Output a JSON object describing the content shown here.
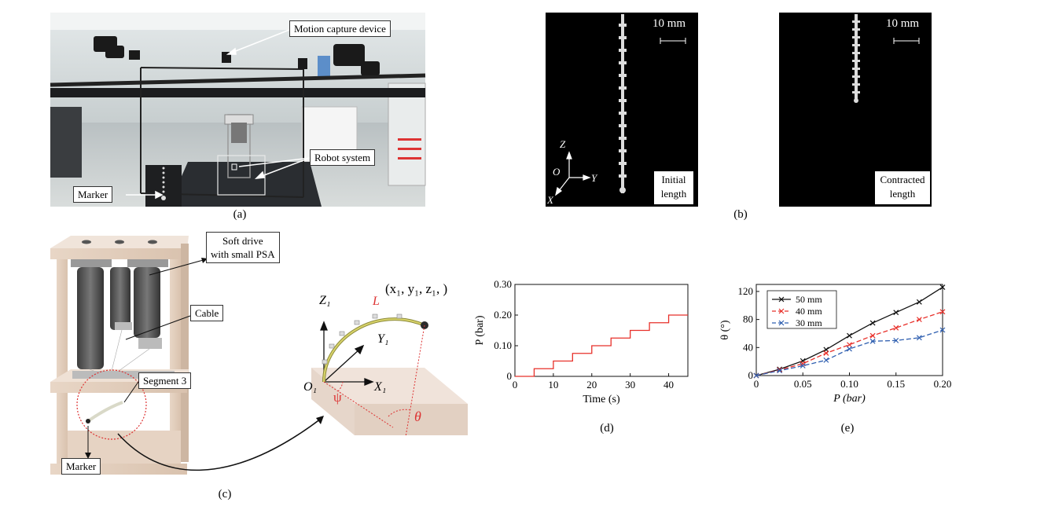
{
  "panel_a": {
    "labels": {
      "motion": "Motion capture device",
      "robot": "Robot system",
      "marker": "Marker"
    },
    "caption": "(a)"
  },
  "panel_b": {
    "scale_left": "10 mm",
    "scale_right": "10 mm",
    "axis_z": "Z",
    "axis_o": "O",
    "axis_y": "Y",
    "axis_x": "X",
    "initial_l1": "Initial",
    "initial_l2": "length",
    "contracted_l1": "Contracted",
    "contracted_l2": "length",
    "caption": "(b)"
  },
  "panel_c": {
    "soft_drive_l1": "Soft drive",
    "soft_drive_l2": "with small PSA",
    "cable": "Cable",
    "segment": "Segment 3",
    "marker": "Marker",
    "caption": "(c)",
    "coords": "(x₁, y₁, z₁, )",
    "z_axis": "Z₁",
    "y_axis": "Y₁",
    "x_axis": "X₁",
    "origin": "O₁",
    "length": "L",
    "psi": "ψ",
    "theta": "θ"
  },
  "chart_data": [
    {
      "type": "line",
      "xlabel": "Time (s)",
      "ylabel": "P (bar)",
      "xlim": [
        0,
        45
      ],
      "ylim": [
        0,
        0.3
      ],
      "xticks": [
        "0",
        "10",
        "20",
        "30",
        "40"
      ],
      "yticks": [
        "0",
        "0.10",
        "0.20",
        "0.30"
      ],
      "series": [
        {
          "color": "#e8302a",
          "x": [
            0,
            5,
            5,
            10,
            10,
            15,
            15,
            20,
            20,
            25,
            25,
            30,
            30,
            35,
            35,
            40,
            40,
            45
          ],
          "y": [
            0,
            0,
            0.025,
            0.025,
            0.05,
            0.05,
            0.075,
            0.075,
            0.1,
            0.1,
            0.125,
            0.125,
            0.15,
            0.15,
            0.175,
            0.175,
            0.2,
            0.2
          ]
        }
      ],
      "caption": "(d)"
    },
    {
      "type": "line",
      "xlabel": "P (bar)",
      "ylabel": "θ (°)",
      "xlim": [
        0,
        0.2
      ],
      "ylim": [
        0,
        130
      ],
      "xticks": [
        "0",
        "0.05",
        "0.10",
        "0.15",
        "0.20"
      ],
      "yticks": [
        "0",
        "40",
        "80",
        "120"
      ],
      "legend_position": "top-left",
      "x": [
        0,
        0.025,
        0.05,
        0.075,
        0.1,
        0.125,
        0.15,
        0.175,
        0.2
      ],
      "series": [
        {
          "name": "50 mm",
          "color": "#111111",
          "dash": "solid",
          "values": [
            0,
            9,
            21,
            37,
            57,
            75,
            90,
            105,
            126
          ]
        },
        {
          "name": "40 mm",
          "color": "#e8302a",
          "dash": "dashed",
          "values": [
            0,
            8,
            17,
            32,
            44,
            57,
            68,
            80,
            91
          ]
        },
        {
          "name": "30 mm",
          "color": "#2f5fb0",
          "dash": "dashed",
          "values": [
            0,
            7,
            14,
            22,
            38,
            49,
            50,
            54,
            65
          ]
        }
      ],
      "caption": "(e)"
    }
  ]
}
